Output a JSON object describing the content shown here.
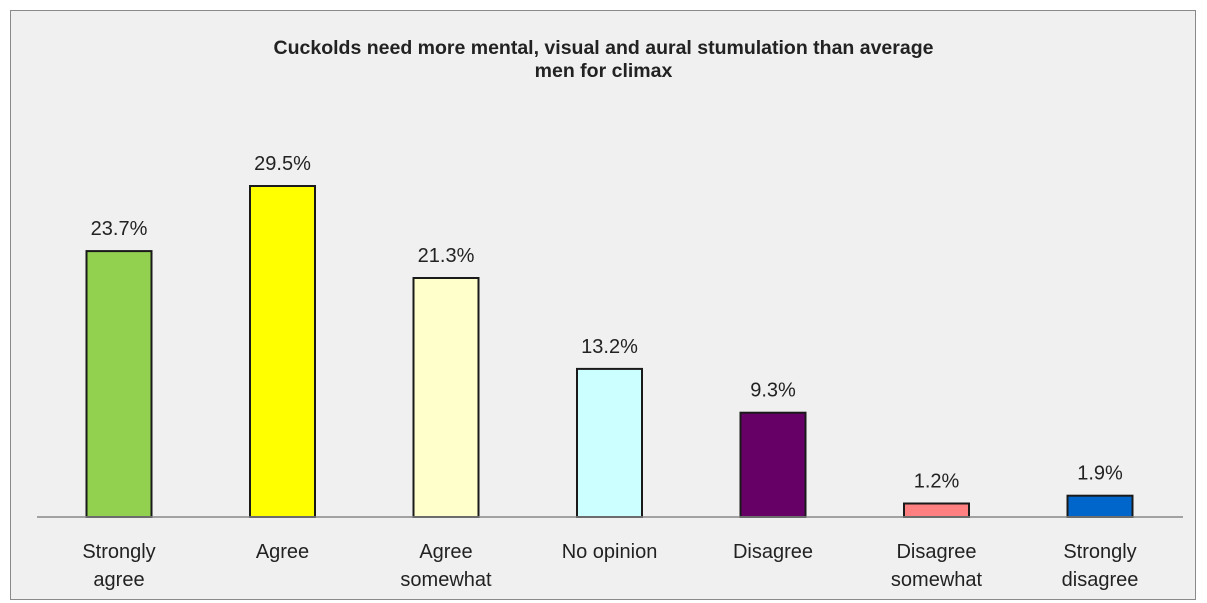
{
  "chart_data": {
    "type": "bar",
    "title": "Cuckolds need more mental, visual and aural stumulation than average\nmen for climax",
    "xlabel": "",
    "ylabel": "",
    "ylim": [
      0,
      36
    ],
    "grid": false,
    "legend": "none",
    "categories": [
      [
        "Strongly",
        "agree"
      ],
      [
        "Agree"
      ],
      [
        "Agree",
        "somewhat"
      ],
      [
        "No opinion"
      ],
      [
        "Disagree"
      ],
      [
        "Disagree",
        "somewhat"
      ],
      [
        "Strongly",
        "disagree"
      ]
    ],
    "values": [
      23.7,
      29.5,
      21.3,
      13.2,
      9.3,
      1.2,
      1.9
    ],
    "value_labels": [
      "23.7%",
      "29.5%",
      "21.3%",
      "13.2%",
      "9.3%",
      "1.2%",
      "1.9%"
    ],
    "colors": [
      "#92d050",
      "#ffff00",
      "#ffffcc",
      "#ccffff",
      "#660066",
      "#ff8080",
      "#0066cc"
    ],
    "background": "#f0f0f0",
    "bar_outline": "#1a1a1a"
  }
}
